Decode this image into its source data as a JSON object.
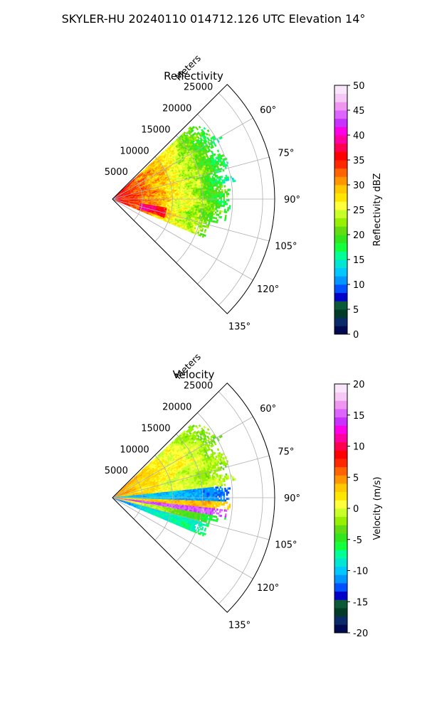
{
  "suptitle": "SKYLER-HU  20240110  014712.126 UTC Elevation 14°",
  "chart_data": [
    {
      "type": "heatmap",
      "subtype": "polar-sector",
      "title": "Reflectivity",
      "radial_label": "Meters",
      "radial_ticks": [
        "5000",
        "10000",
        "15000",
        "20000",
        "25000"
      ],
      "radial_tick_values": [
        5000,
        10000,
        15000,
        20000,
        25000
      ],
      "radial_max": 27000,
      "angular_ticks": [
        "60°",
        "75°",
        "90°",
        "105°",
        "120°",
        "135°"
      ],
      "angular_tick_values": [
        60,
        75,
        90,
        105,
        120,
        135
      ],
      "theta_range": [
        45,
        135
      ],
      "grid": true,
      "colorbar": {
        "label": "Reflectivity dBZ",
        "ticks": [
          "0",
          "5",
          "10",
          "15",
          "20",
          "25",
          "30",
          "35",
          "40",
          "45",
          "50"
        ],
        "range": [
          0,
          50
        ],
        "colors": [
          "#000a50",
          "#0a2a6a",
          "#003c28",
          "#0a5a3a",
          "#0000c8",
          "#0050ff",
          "#0096ff",
          "#00c8ff",
          "#00e6d2",
          "#00ff96",
          "#14ff3c",
          "#32e61e",
          "#64dc14",
          "#96f000",
          "#c8ff28",
          "#ffff3c",
          "#ffe600",
          "#ffc800",
          "#ff9600",
          "#ff6400",
          "#ff2800",
          "#ff0000",
          "#ff0050",
          "#ff00a0",
          "#ff00e6",
          "#c832ff",
          "#dc64ff",
          "#f096f0",
          "#f5c8f5",
          "#fae6fa"
        ]
      },
      "echo_extent_m": 22000,
      "echo_theta_range": [
        47,
        113
      ],
      "pattern": "reflectivity"
    },
    {
      "type": "heatmap",
      "subtype": "polar-sector",
      "title": "Velocity",
      "radial_label": "Meters",
      "radial_ticks": [
        "5000",
        "10000",
        "15000",
        "20000",
        "25000"
      ],
      "radial_tick_values": [
        5000,
        10000,
        15000,
        20000,
        25000
      ],
      "radial_max": 27000,
      "angular_ticks": [
        "60°",
        "75°",
        "90°",
        "105°",
        "120°",
        "135°"
      ],
      "angular_tick_values": [
        60,
        75,
        90,
        105,
        120,
        135
      ],
      "theta_range": [
        45,
        135
      ],
      "grid": true,
      "colorbar": {
        "label": "Velocity (m/s)",
        "ticks": [
          "-20",
          "-15",
          "-10",
          "-5",
          "0",
          "5",
          "10",
          "15",
          "20"
        ],
        "range": [
          -20,
          20
        ],
        "colors": [
          "#000a50",
          "#0a2a6a",
          "#003c28",
          "#0a5a3a",
          "#0000c8",
          "#0050ff",
          "#0096ff",
          "#00c8ff",
          "#00e6d2",
          "#00ff96",
          "#14ff3c",
          "#32e61e",
          "#64dc14",
          "#96f000",
          "#c8ff28",
          "#ffff3c",
          "#ffe600",
          "#ffc800",
          "#ff9600",
          "#ff6400",
          "#ff2800",
          "#ff0000",
          "#ff0050",
          "#ff00a0",
          "#ff00e6",
          "#c832ff",
          "#dc64ff",
          "#f096f0",
          "#f5c8f5",
          "#fae6fa"
        ]
      },
      "echo_extent_m": 22000,
      "echo_theta_range": [
        47,
        113
      ],
      "pattern": "velocity"
    }
  ]
}
